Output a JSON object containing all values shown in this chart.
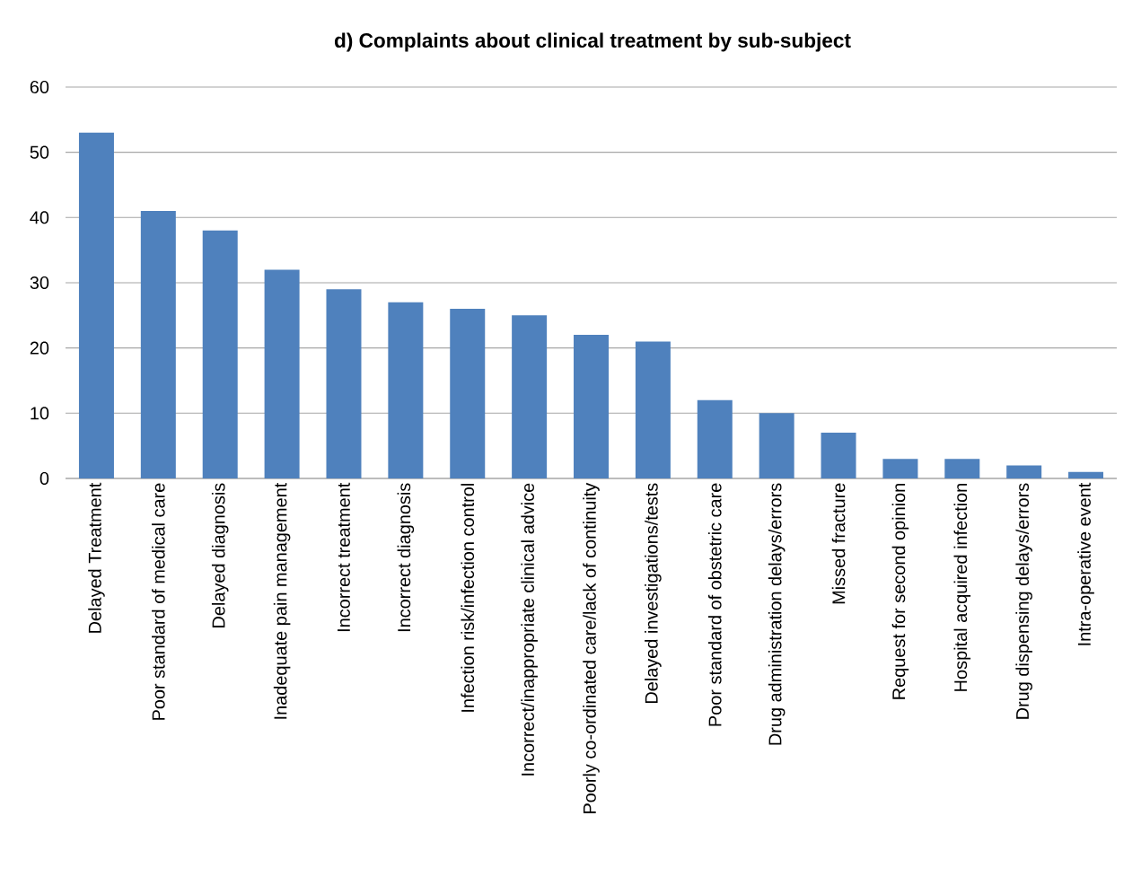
{
  "chart_data": {
    "type": "bar",
    "title": "d) Complaints about clinical treatment by sub-subject",
    "categories": [
      "Delayed Treatment",
      "Poor standard of medical care",
      "Delayed diagnosis",
      "Inadequate pain management",
      "Incorrect treatment",
      "Incorrect diagnosis",
      "Infection risk/infection control",
      "Incorrect/inappropriate clinical advice",
      "Poorly co-ordinated care/lack of continuity",
      "Delayed investigations/tests",
      "Poor standard of obstetric care",
      "Drug administration delays/errors",
      "Missed fracture",
      "Request for second opinion",
      "Hospital acquired infection",
      "Drug dispensing delays/errors",
      "Intra-operative event"
    ],
    "values": [
      53,
      41,
      38,
      32,
      29,
      27,
      26,
      25,
      22,
      21,
      12,
      10,
      7,
      3,
      3,
      2,
      1
    ],
    "color": "#4f81bd",
    "ylim": [
      0,
      60
    ],
    "yticks": [
      0,
      10,
      20,
      30,
      40,
      50,
      60
    ],
    "grid": "y"
  }
}
